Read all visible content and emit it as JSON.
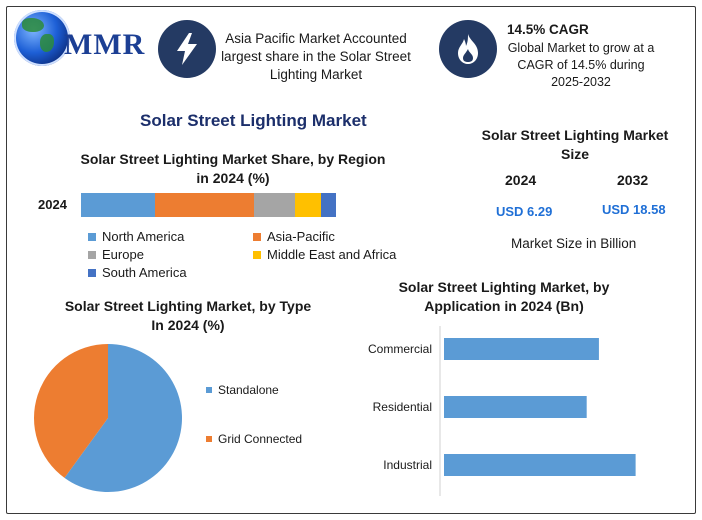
{
  "brand": {
    "logo_text": "MMR"
  },
  "header": {
    "region_text": "Asia Pacific Market Accounted largest share in the Solar Street Lighting Market",
    "cagr_title": "14.5% CAGR",
    "cagr_desc": "Global Market to grow at a CAGR of 14.5% during 2025-2032",
    "icons": [
      "lightning-icon",
      "flame-icon"
    ]
  },
  "main_title": "Solar Street Lighting Market",
  "size_panel": {
    "title": "Solar Street Lighting Market Size",
    "year_a": "2024",
    "value_a": "USD 6.29",
    "year_b": "2032",
    "value_b": "USD 18.58",
    "unit_note": "Market Size in Billion"
  },
  "colors": {
    "blue": "#5b9bd5",
    "orange": "#ed7d31",
    "gray": "#a5a5a5",
    "yellow": "#ffc000",
    "darkblue": "#4472c4",
    "icon_bg": "#243a63"
  },
  "chart_data": [
    {
      "type": "bar",
      "orientation": "horizontal-stacked",
      "title": "Solar Street Lighting Market Share, by Region in 2024 (%)",
      "categories": [
        "2024"
      ],
      "series": [
        {
          "name": "North America",
          "values": [
            29
          ],
          "color": "#5b9bd5"
        },
        {
          "name": "Asia-Pacific",
          "values": [
            39
          ],
          "color": "#ed7d31"
        },
        {
          "name": "Europe",
          "values": [
            16
          ],
          "color": "#a5a5a5"
        },
        {
          "name": "Middle East and Africa",
          "values": [
            10
          ],
          "color": "#ffc000"
        },
        {
          "name": "South America",
          "values": [
            6
          ],
          "color": "#4472c4"
        }
      ],
      "xlim": [
        0,
        100
      ],
      "legend_position": "bottom"
    },
    {
      "type": "pie",
      "title": "Solar Street Lighting Market, by Type In 2024 (%)",
      "slices": [
        {
          "name": "Standalone",
          "value": 60,
          "color": "#5b9bd5"
        },
        {
          "name": "Grid Connected",
          "value": 40,
          "color": "#ed7d31"
        }
      ],
      "legend_position": "right"
    },
    {
      "type": "bar",
      "orientation": "horizontal",
      "title": "Solar Street Lighting Market, by Application in 2024 (Bn)",
      "categories": [
        "Commercial",
        "Residential",
        "Industrial"
      ],
      "values": [
        1.9,
        1.75,
        2.35
      ],
      "xlim": [
        0,
        2.6
      ],
      "color": "#5b9bd5"
    }
  ]
}
